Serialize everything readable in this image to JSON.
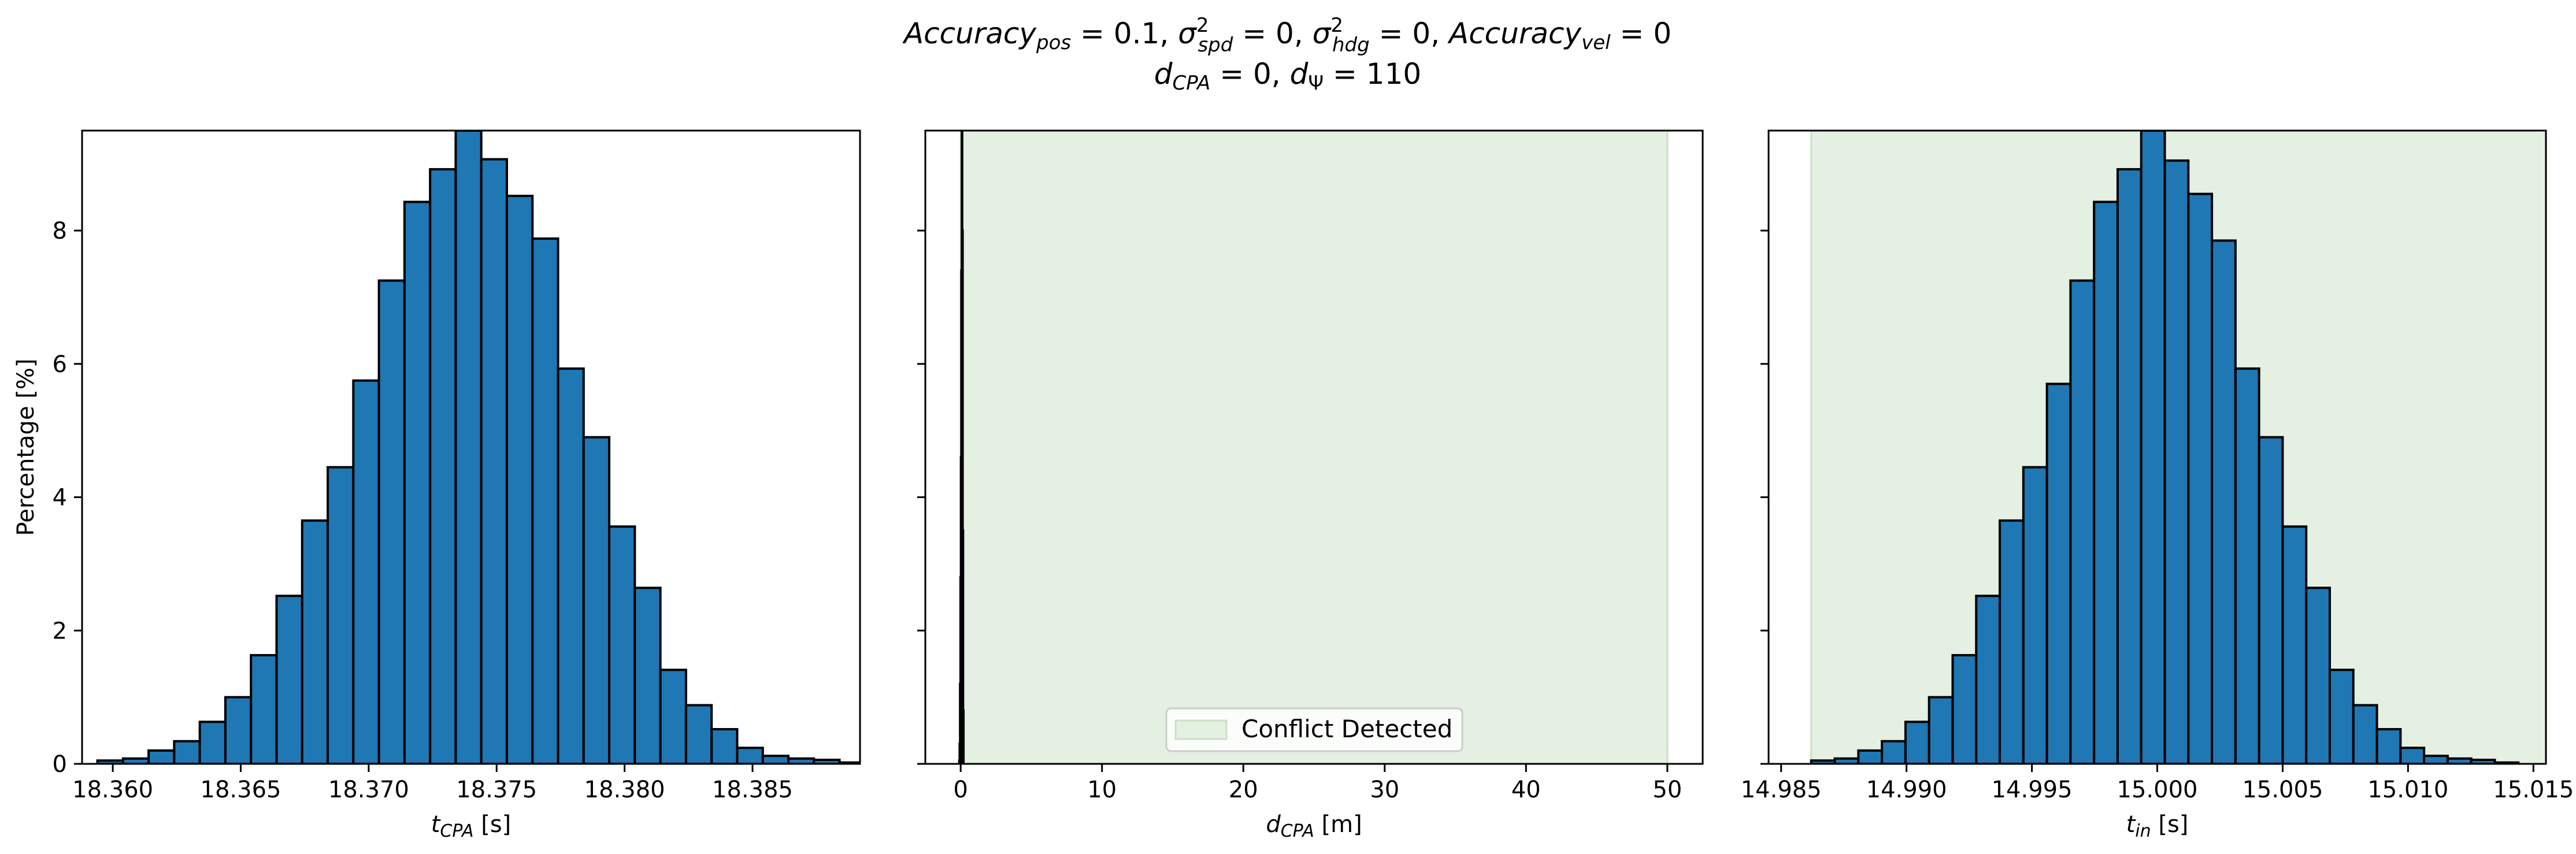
{
  "figure": {
    "title_line1": "Accuracy_pos = 0.1, σ²_spd = 0, σ²_hdg = 0, Accuracy_vel = 0",
    "title_line2": "d_CPA = 0, d_Ψ = 110"
  },
  "colors": {
    "bar_fill": "#1f77b4",
    "bar_edge": "#000000",
    "conflict_fill": "#e4f0e2",
    "conflict_edge": "#c9e2c4"
  },
  "chart_data": [
    {
      "type": "bar",
      "title": "",
      "xlabel": "t_CPA [s]",
      "ylabel": "Percentage [%]",
      "xlim": [
        18.3588,
        18.3892
      ],
      "ylim": [
        0,
        9.5
      ],
      "xticks": [
        {
          "v": 18.36,
          "label": "18.360"
        },
        {
          "v": 18.365,
          "label": "18.365"
        },
        {
          "v": 18.37,
          "label": "18.370"
        },
        {
          "v": 18.375,
          "label": "18.375"
        },
        {
          "v": 18.38,
          "label": "18.380"
        },
        {
          "v": 18.385,
          "label": "18.385"
        }
      ],
      "yticks": [
        {
          "v": 0,
          "label": "0"
        },
        {
          "v": 2,
          "label": "2"
        },
        {
          "v": 4,
          "label": "4"
        },
        {
          "v": 6,
          "label": "6"
        },
        {
          "v": 8,
          "label": "8"
        }
      ],
      "bin_start": 18.3594,
      "bin_width": 0.001,
      "values": [
        0.05,
        0.08,
        0.2,
        0.34,
        0.63,
        1.0,
        1.63,
        2.52,
        3.65,
        4.45,
        5.75,
        7.25,
        8.43,
        8.92,
        9.5,
        9.07,
        8.52,
        7.88,
        5.93,
        4.9,
        3.56,
        2.64,
        1.41,
        0.88,
        0.52,
        0.24,
        0.12,
        0.08,
        0.06,
        0.02
      ]
    },
    {
      "type": "bar",
      "title": "",
      "xlabel": "d_CPA [m]",
      "ylabel": "",
      "xlim": [
        -2.5,
        52.5
      ],
      "ylim": [
        0,
        9.5
      ],
      "xticks": [
        {
          "v": 0,
          "label": "0"
        },
        {
          "v": 10,
          "label": "10"
        },
        {
          "v": 20,
          "label": "20"
        },
        {
          "v": 30,
          "label": "30"
        },
        {
          "v": 40,
          "label": "40"
        },
        {
          "v": 50,
          "label": "50"
        }
      ],
      "yticks": [
        {
          "v": 0,
          "label": ""
        },
        {
          "v": 2,
          "label": ""
        },
        {
          "v": 4,
          "label": ""
        },
        {
          "v": 6,
          "label": ""
        },
        {
          "v": 8,
          "label": ""
        }
      ],
      "conflict_region": [
        0,
        50
      ],
      "bin_start": -0.1,
      "bin_width": 0.03,
      "values": [
        0.05,
        0.3,
        1.2,
        2.8,
        4.6,
        7.4,
        9.5,
        8.0,
        3.5,
        0.8
      ]
    },
    {
      "type": "bar",
      "title": "",
      "xlabel": "t_in [s]",
      "ylabel": "",
      "xlim": [
        14.9845,
        15.0155
      ],
      "ylim": [
        0,
        9.5
      ],
      "xticks": [
        {
          "v": 14.985,
          "label": "14.985"
        },
        {
          "v": 14.99,
          "label": "14.990"
        },
        {
          "v": 14.995,
          "label": "14.995"
        },
        {
          "v": 15.0,
          "label": "15.000"
        },
        {
          "v": 15.005,
          "label": "15.005"
        },
        {
          "v": 15.01,
          "label": "15.010"
        },
        {
          "v": 15.015,
          "label": "15.015"
        }
      ],
      "yticks": [
        {
          "v": 0,
          "label": ""
        },
        {
          "v": 2,
          "label": ""
        },
        {
          "v": 4,
          "label": ""
        },
        {
          "v": 6,
          "label": ""
        },
        {
          "v": 8,
          "label": ""
        }
      ],
      "conflict_region": [
        14.9862,
        15.0155
      ],
      "bin_start": 14.9862,
      "bin_width": 0.00094,
      "values": [
        0.05,
        0.08,
        0.2,
        0.34,
        0.63,
        1.0,
        1.63,
        2.52,
        3.65,
        4.45,
        5.7,
        7.25,
        8.43,
        8.92,
        9.5,
        9.05,
        8.55,
        7.85,
        5.93,
        4.9,
        3.56,
        2.64,
        1.41,
        0.88,
        0.52,
        0.24,
        0.12,
        0.08,
        0.06,
        0.02
      ]
    }
  ],
  "legend": {
    "conflict_label": "Conflict Detected",
    "placement": "lower-center"
  }
}
